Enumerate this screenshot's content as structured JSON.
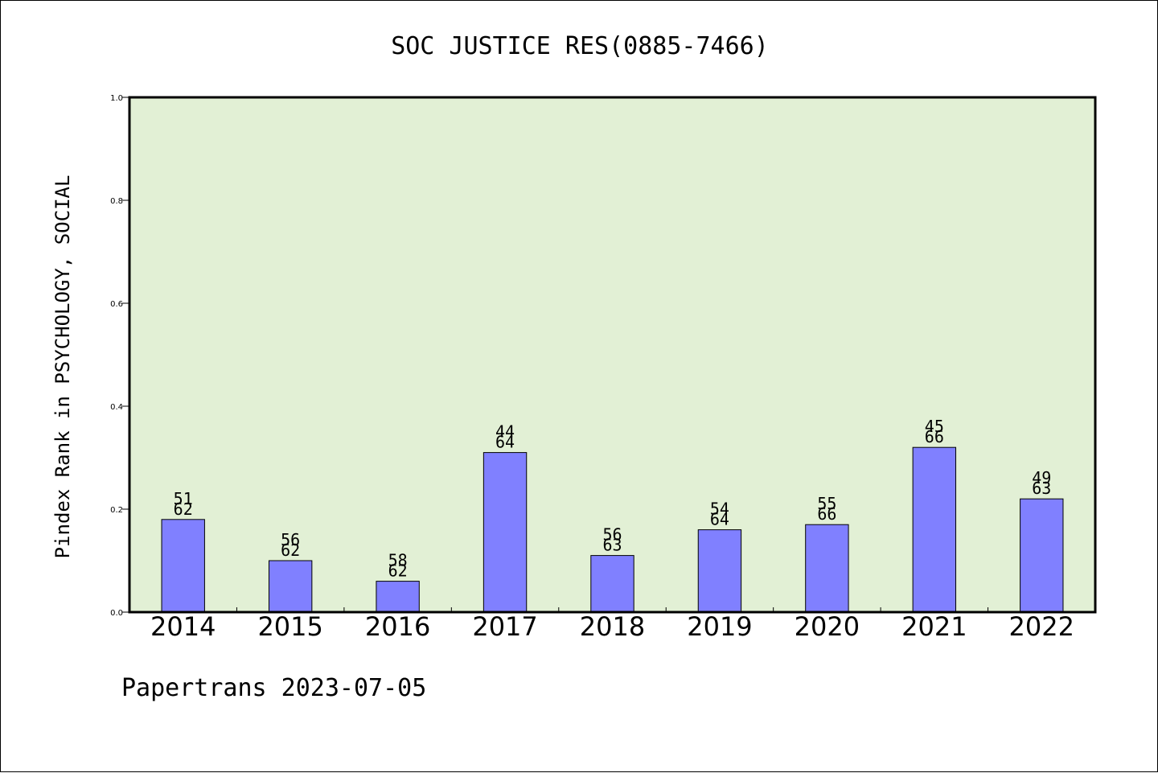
{
  "chart_data": {
    "type": "bar",
    "title": "SOC JUSTICE RES(0885-7466)",
    "ylabel": "Pindex Rank in PSYCHOLOGY, SOCIAL",
    "xlabel": "",
    "ylim": [
      0,
      1.0
    ],
    "yticks": [
      "0.0",
      "0.2",
      "0.4",
      "0.6",
      "0.8",
      "1.0"
    ],
    "categories": [
      "2014",
      "2015",
      "2016",
      "2017",
      "2018",
      "2019",
      "2020",
      "2021",
      "2022"
    ],
    "values": [
      0.18,
      0.1,
      0.06,
      0.31,
      0.11,
      0.16,
      0.17,
      0.32,
      0.22
    ],
    "rank_labels": [
      "51",
      "56",
      "58",
      "44",
      "56",
      "54",
      "55",
      "45",
      "49"
    ],
    "total_labels": [
      "62",
      "62",
      "62",
      "64",
      "63",
      "64",
      "66",
      "66",
      "63"
    ],
    "grid": false,
    "legend": "none",
    "colors": {
      "plot_background": "#e2f0d5",
      "bar_fill": "#8080ff",
      "bar_stroke": "#000000"
    }
  },
  "footer": {
    "text": "Papertrans 2023-07-05"
  }
}
